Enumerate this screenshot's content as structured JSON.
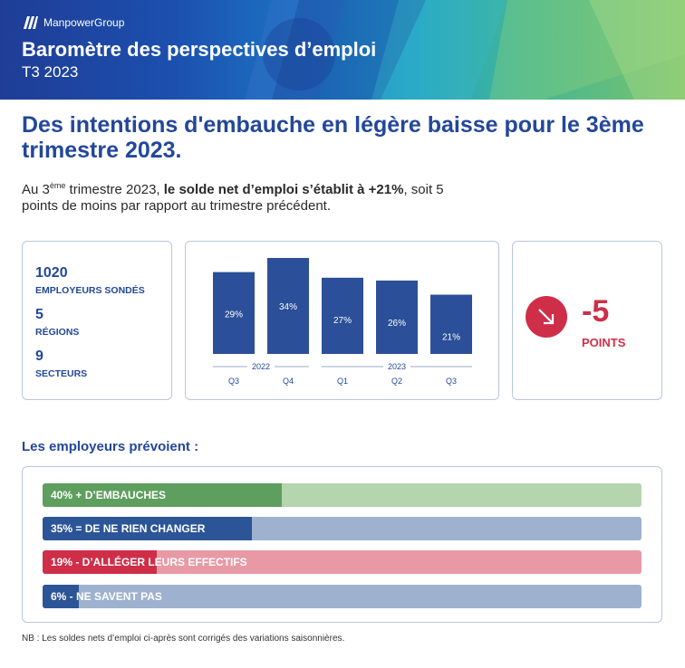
{
  "header": {
    "brand": "ManpowerGroup",
    "title": "Baromètre des perspectives d’emploi",
    "subtitle": "T3 2023"
  },
  "headline": "Des intentions d'embauche en légère baisse pour le 3ème trimestre 2023.",
  "intro": {
    "p1": "Au 3",
    "sup": "ème",
    "p2": " trimestre 2023, ",
    "bold": "le solde net d’emploi s’établit à +21%",
    "p3": ", soit 5 points de moins par rapport au trimestre précédent."
  },
  "stats": [
    {
      "value": "1020",
      "label": "EMPLOYEURS SONDÉS"
    },
    {
      "value": "5",
      "label": "RÉGIONS"
    },
    {
      "value": "9",
      "label": "SECTEURS"
    }
  ],
  "delta": {
    "value": "-5",
    "label": "POINTS",
    "icon": "arrow-down-right-icon",
    "color": "#cf2e49"
  },
  "chart_data": {
    "type": "bar",
    "categories": [
      "Q3",
      "Q4",
      "Q1",
      "Q2",
      "Q3"
    ],
    "groups": [
      {
        "label": "2022",
        "indices": [
          0,
          1
        ]
      },
      {
        "label": "2023",
        "indices": [
          2,
          3,
          4
        ]
      }
    ],
    "values": [
      29,
      34,
      27,
      26,
      21
    ],
    "value_labels": [
      "29%",
      "34%",
      "27%",
      "26%",
      "21%"
    ],
    "ylim": [
      0,
      34
    ],
    "color": "#2b4f98",
    "grid": false
  },
  "expectations": {
    "title": "Les employeurs prévoient :",
    "items": [
      {
        "label": "40% + D’EMBAUCHES",
        "value": 40,
        "fill": "#5e9e5e",
        "track": "#b4d5ae"
      },
      {
        "label": "35% = DE NE RIEN CHANGER",
        "value": 35,
        "fill": "#2b5597",
        "track": "#9eb1cf"
      },
      {
        "label": "19% - D’ALLÉGER LEURS EFFECTIFS",
        "value": 19,
        "fill": "#cf2e49",
        "track": "#e999a6"
      },
      {
        "label": "6% - NE SAVENT PAS",
        "value": 6,
        "fill": "#2b5597",
        "track": "#9eb1cf"
      }
    ]
  },
  "footnote": "NB : Les soldes nets d’emploi ci-après sont corrigés des variations saisonnières."
}
